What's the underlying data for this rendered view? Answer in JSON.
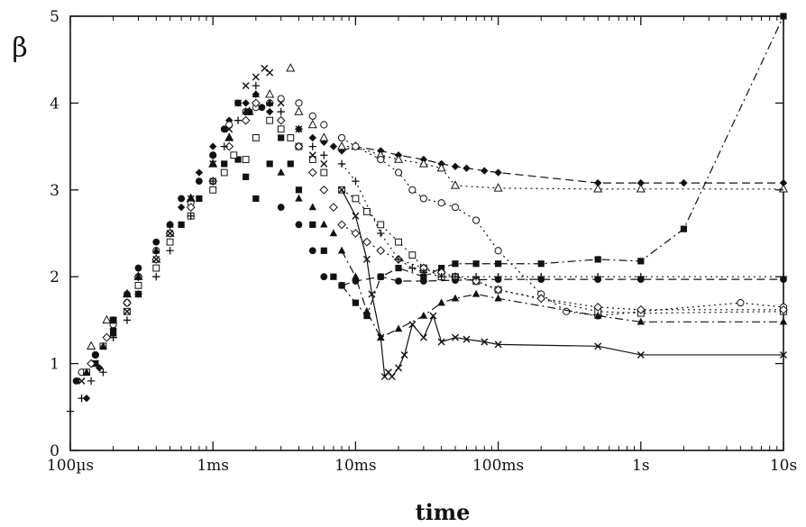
{
  "chart_data": {
    "type": "scatter",
    "xlabel": "time",
    "ylabel": "β",
    "x_scale": "log",
    "x_unit": "s",
    "xlim": [
      0.0001,
      10
    ],
    "ylim": [
      0,
      5
    ],
    "grid": false,
    "legend": "none",
    "x_tick_labels": [
      {
        "value": 0.0001,
        "label": "100µs"
      },
      {
        "value": 0.001,
        "label": "1ms"
      },
      {
        "value": 0.01,
        "label": "10ms"
      },
      {
        "value": 0.1,
        "label": "100ms"
      },
      {
        "value": 1,
        "label": "1s"
      },
      {
        "value": 10,
        "label": "10s"
      }
    ],
    "y_ticks": [
      0,
      1,
      2,
      3,
      4,
      5
    ],
    "series": [
      {
        "marker": "filled-diamond",
        "line": "dashed",
        "x": [
          0.00013,
          0.00016,
          0.0002,
          0.00025,
          0.0003,
          0.0004,
          0.0005,
          0.0006,
          0.0008,
          0.001,
          0.0013,
          0.0017,
          0.002,
          0.0025,
          0.003,
          0.004,
          0.005,
          0.006,
          0.007,
          0.008,
          0.01,
          0.015,
          0.02,
          0.03,
          0.04,
          0.05,
          0.06,
          0.08,
          0.1,
          0.5,
          1,
          2,
          10
        ],
        "y": [
          0.6,
          0.95,
          1.4,
          1.7,
          2.0,
          2.3,
          2.6,
          2.8,
          3.2,
          3.5,
          3.8,
          4.0,
          4.1,
          3.9,
          3.8,
          3.7,
          3.6,
          3.55,
          3.5,
          3.45,
          3.5,
          3.45,
          3.4,
          3.35,
          3.3,
          3.27,
          3.25,
          3.22,
          3.2,
          3.08,
          3.08,
          3.08,
          3.08
        ]
      },
      {
        "marker": "open-triangle",
        "line": "dotted",
        "x": [
          0.00014,
          0.00018,
          0.00025,
          0.0003,
          0.0004,
          0.0005,
          0.0007,
          0.001,
          0.0013,
          0.0018,
          0.0025,
          0.0035,
          0.004,
          0.005,
          0.006,
          0.008,
          0.01,
          0.015,
          0.02,
          0.03,
          0.04,
          0.05,
          0.1,
          0.5,
          1,
          10
        ],
        "y": [
          1.2,
          1.5,
          1.8,
          2.0,
          2.2,
          2.5,
          2.9,
          3.3,
          3.6,
          3.9,
          4.1,
          4.4,
          3.9,
          3.75,
          3.6,
          3.5,
          3.5,
          3.4,
          3.35,
          3.3,
          3.25,
          3.05,
          3.02,
          3.01,
          3.01,
          3.01
        ]
      },
      {
        "marker": "filled-square",
        "line": "dash-dot",
        "x": [
          0.00015,
          0.0002,
          0.0003,
          0.0004,
          0.0005,
          0.0006,
          0.0008,
          0.001,
          0.0012,
          0.0015,
          0.0017,
          0.002,
          0.0025,
          0.003,
          0.0035,
          0.004,
          0.005,
          0.006,
          0.007,
          0.008,
          0.01,
          0.012,
          0.015,
          0.02,
          0.03,
          0.04,
          0.05,
          0.07,
          0.1,
          0.2,
          0.5,
          1,
          2,
          10
        ],
        "y": [
          1.0,
          1.35,
          1.8,
          2.1,
          2.4,
          2.6,
          2.9,
          3.1,
          3.3,
          3.35,
          3.15,
          2.9,
          3.3,
          3.6,
          3.3,
          3.0,
          2.6,
          2.3,
          2.0,
          1.9,
          1.7,
          1.55,
          2.0,
          2.1,
          2.0,
          2.1,
          2.15,
          2.15,
          2.15,
          2.15,
          2.2,
          2.18,
          2.55,
          5.0
        ]
      },
      {
        "marker": "open-circle",
        "line": "dotted",
        "x": [
          0.00012,
          0.00015,
          0.0002,
          0.00025,
          0.0003,
          0.0004,
          0.0005,
          0.0007,
          0.001,
          0.0013,
          0.0017,
          0.002,
          0.0025,
          0.003,
          0.004,
          0.005,
          0.006,
          0.008,
          0.01,
          0.015,
          0.02,
          0.025,
          0.03,
          0.04,
          0.05,
          0.07,
          0.1,
          0.2,
          0.3,
          0.5,
          1,
          5,
          10
        ],
        "y": [
          0.9,
          1.1,
          1.45,
          1.7,
          2.0,
          2.3,
          2.5,
          2.85,
          3.4,
          3.75,
          3.9,
          3.95,
          4.0,
          4.05,
          4.0,
          3.85,
          3.75,
          3.6,
          3.5,
          3.35,
          3.2,
          3.0,
          2.9,
          2.85,
          2.8,
          2.65,
          2.3,
          1.8,
          1.6,
          1.55,
          1.6,
          1.7,
          1.65
        ]
      },
      {
        "marker": "open-square",
        "line": "dotted",
        "x": [
          0.00013,
          0.00017,
          0.0002,
          0.00025,
          0.0003,
          0.0004,
          0.0005,
          0.0007,
          0.001,
          0.0012,
          0.0014,
          0.0017,
          0.002,
          0.0025,
          0.003,
          0.0035,
          0.004,
          0.005,
          0.006,
          0.008,
          0.01,
          0.012,
          0.015,
          0.02,
          0.025,
          0.03,
          0.04,
          0.05,
          0.07,
          0.1,
          0.5,
          1,
          10
        ],
        "y": [
          0.9,
          1.2,
          1.5,
          1.6,
          1.9,
          2.1,
          2.4,
          2.7,
          3.0,
          3.2,
          3.4,
          3.35,
          3.6,
          3.8,
          3.7,
          3.6,
          3.5,
          3.35,
          3.2,
          3.0,
          2.9,
          2.75,
          2.6,
          2.4,
          2.25,
          2.1,
          2.0,
          2.0,
          1.95,
          1.85,
          1.6,
          1.58,
          1.6
        ]
      },
      {
        "marker": "filled-circle",
        "line": "dashed",
        "x": [
          0.00011,
          0.00015,
          0.0002,
          0.00025,
          0.0003,
          0.0004,
          0.0005,
          0.0006,
          0.0008,
          0.001,
          0.0012,
          0.0015,
          0.0018,
          0.0022,
          0.003,
          0.004,
          0.005,
          0.006,
          0.008,
          0.01,
          0.015,
          0.02,
          0.03,
          0.05,
          0.1,
          0.2,
          0.5,
          1,
          10
        ],
        "y": [
          0.8,
          1.1,
          1.5,
          1.8,
          2.1,
          2.4,
          2.6,
          2.9,
          3.1,
          3.4,
          3.7,
          4.0,
          3.9,
          3.95,
          2.8,
          2.6,
          2.3,
          2.0,
          1.9,
          1.95,
          2.0,
          1.95,
          1.95,
          1.96,
          1.97,
          1.97,
          1.97,
          1.97,
          1.97
        ]
      },
      {
        "marker": "open-diamond",
        "line": "dotted",
        "x": [
          0.00014,
          0.00018,
          0.00025,
          0.0003,
          0.0004,
          0.0005,
          0.0007,
          0.001,
          0.0013,
          0.0017,
          0.002,
          0.003,
          0.004,
          0.005,
          0.006,
          0.007,
          0.008,
          0.01,
          0.012,
          0.015,
          0.02,
          0.03,
          0.04,
          0.05,
          0.07,
          0.1,
          0.2,
          0.5,
          1,
          10
        ],
        "y": [
          1.0,
          1.3,
          1.7,
          2.0,
          2.2,
          2.5,
          2.8,
          3.1,
          3.5,
          3.8,
          4.0,
          3.8,
          3.5,
          3.2,
          3.0,
          2.8,
          2.6,
          2.5,
          2.4,
          2.3,
          2.2,
          2.1,
          2.05,
          2.0,
          1.95,
          1.85,
          1.75,
          1.65,
          1.62,
          1.62
        ]
      },
      {
        "marker": "filled-triangle",
        "line": "dash-dot",
        "x": [
          0.00013,
          0.00017,
          0.0002,
          0.00025,
          0.0003,
          0.0004,
          0.0005,
          0.0007,
          0.001,
          0.0013,
          0.0017,
          0.002,
          0.0025,
          0.003,
          0.004,
          0.005,
          0.006,
          0.007,
          0.008,
          0.01,
          0.012,
          0.015,
          0.02,
          0.03,
          0.04,
          0.05,
          0.07,
          0.1,
          0.5,
          1,
          10
        ],
        "y": [
          0.9,
          1.2,
          1.5,
          1.8,
          2.0,
          2.3,
          2.6,
          2.9,
          3.3,
          3.6,
          3.9,
          4.1,
          4.0,
          3.2,
          2.9,
          2.8,
          2.6,
          2.5,
          2.3,
          2.0,
          1.6,
          1.3,
          1.4,
          1.55,
          1.7,
          1.75,
          1.8,
          1.75,
          1.55,
          1.48,
          1.48
        ]
      },
      {
        "marker": "plus",
        "line": "dotted",
        "x": [
          0.0001,
          0.00012,
          0.00014,
          0.00017,
          0.0002,
          0.00025,
          0.0003,
          0.0004,
          0.0005,
          0.0007,
          0.001,
          0.0012,
          0.0015,
          0.002,
          0.0025,
          0.003,
          0.004,
          0.005,
          0.006,
          0.008,
          0.01,
          0.015,
          0.02,
          0.025,
          0.03,
          0.04,
          0.05,
          0.07,
          0.1,
          0.2,
          0.5,
          1,
          10
        ],
        "y": [
          0.45,
          0.6,
          0.8,
          0.9,
          1.3,
          1.5,
          1.8,
          2.0,
          2.3,
          2.7,
          3.1,
          3.5,
          3.8,
          4.2,
          4.0,
          3.9,
          3.7,
          3.5,
          3.4,
          3.3,
          3.1,
          2.5,
          2.2,
          2.1,
          2.05,
          2.0,
          2.0,
          2.0,
          2.0,
          2.0,
          2.0,
          2.0,
          2.0
        ]
      },
      {
        "marker": "cross",
        "line": "solid",
        "x": [
          0.00012,
          0.00015,
          0.0002,
          0.00025,
          0.0003,
          0.0004,
          0.0005,
          0.0007,
          0.001,
          0.0013,
          0.0015,
          0.0017,
          0.002,
          0.0023,
          0.0025,
          0.003,
          0.004,
          0.005,
          0.006,
          0.008,
          0.01,
          0.012,
          0.013,
          0.015,
          0.016,
          0.017,
          0.018,
          0.02,
          0.022,
          0.025,
          0.03,
          0.035,
          0.04,
          0.05,
          0.06,
          0.08,
          0.1,
          0.5,
          1,
          10
        ],
        "y": [
          0.8,
          1.0,
          1.35,
          1.6,
          1.8,
          2.2,
          2.5,
          2.9,
          3.3,
          3.7,
          4.0,
          4.2,
          4.3,
          4.4,
          4.35,
          4.0,
          3.7,
          3.4,
          3.3,
          3.0,
          2.7,
          2.2,
          1.8,
          1.3,
          0.85,
          0.9,
          0.85,
          0.95,
          1.1,
          1.45,
          1.3,
          1.55,
          1.25,
          1.3,
          1.28,
          1.25,
          1.22,
          1.2,
          1.1,
          1.1
        ]
      }
    ]
  }
}
